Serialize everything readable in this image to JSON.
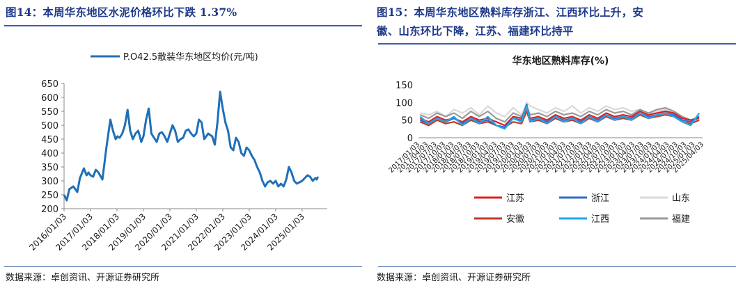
{
  "left": {
    "figure_title": "图14：本周华东地区水泥价格环比下跌 1.37%",
    "source": "数据来源：卓创资讯、开源证券研究所"
  },
  "right": {
    "figure_title_line1": "图15：本周华东地区熟料库存浙江、江西环比上升，安",
    "figure_title_line2": "徽、山东环比下降，江苏、福建环比持平",
    "source": "数据来源：卓创资讯、开源证券研究所"
  },
  "chart_data": [
    {
      "type": "line",
      "title": "",
      "xlabel": "",
      "ylabel": "",
      "ylim": [
        200,
        650
      ],
      "yticks": [
        200,
        250,
        300,
        350,
        400,
        450,
        500,
        550,
        600,
        650
      ],
      "xtick_labels": [
        "2016/01/03",
        "2017/01/03",
        "2018/01/03",
        "2019/01/03",
        "2020/01/03",
        "2021/01/03",
        "2022/01/03",
        "2023/01/03",
        "2024/01/03",
        "2025/01/03"
      ],
      "legend_position": "top",
      "grid": false,
      "colors": {
        "line": "#1f6fb8",
        "axis": "#888888"
      },
      "series": [
        {
          "name": "P.O42.5散装华东地区均价(元/吨)",
          "x": [
            2016.0,
            2016.1,
            2016.2,
            2016.35,
            2016.5,
            2016.6,
            2016.75,
            2016.85,
            2016.92,
            2017.0,
            2017.1,
            2017.2,
            2017.3,
            2017.45,
            2017.6,
            2017.75,
            2017.85,
            2017.95,
            2018.02,
            2018.1,
            2018.2,
            2018.3,
            2018.4,
            2018.5,
            2018.6,
            2018.7,
            2018.8,
            2018.85,
            2018.92,
            2019.0,
            2019.1,
            2019.2,
            2019.3,
            2019.4,
            2019.5,
            2019.6,
            2019.7,
            2019.8,
            2019.9,
            2020.0,
            2020.1,
            2020.2,
            2020.3,
            2020.4,
            2020.5,
            2020.6,
            2020.7,
            2020.8,
            2020.9,
            2021.0,
            2021.1,
            2021.2,
            2021.3,
            2021.45,
            2021.6,
            2021.7,
            2021.8,
            2021.9,
            2022.0,
            2022.1,
            2022.2,
            2022.3,
            2022.4,
            2022.5,
            2022.6,
            2022.7,
            2022.8,
            2022.9,
            2023.0,
            2023.1,
            2023.2,
            2023.3,
            2023.4,
            2023.5,
            2023.6,
            2023.7,
            2023.8,
            2023.9,
            2024.0,
            2024.1,
            2024.2,
            2024.3,
            2024.4,
            2024.5,
            2024.6,
            2024.7,
            2024.8,
            2024.9,
            2025.0,
            2025.1,
            2025.2,
            2025.3,
            2025.4,
            2025.5,
            2025.55,
            2025.6
          ],
          "values": [
            250,
            230,
            270,
            280,
            260,
            310,
            345,
            320,
            330,
            320,
            315,
            340,
            330,
            305,
            420,
            520,
            480,
            450,
            460,
            455,
            470,
            500,
            555,
            480,
            450,
            470,
            480,
            465,
            440,
            460,
            520,
            560,
            470,
            455,
            440,
            470,
            475,
            460,
            440,
            470,
            500,
            480,
            440,
            450,
            455,
            480,
            485,
            470,
            460,
            470,
            520,
            510,
            450,
            470,
            460,
            430,
            510,
            620,
            560,
            510,
            480,
            420,
            410,
            455,
            440,
            400,
            390,
            420,
            410,
            390,
            375,
            350,
            330,
            300,
            280,
            295,
            300,
            290,
            300,
            280,
            290,
            280,
            305,
            350,
            330,
            300,
            290,
            295,
            300,
            310,
            320,
            315,
            300,
            310,
            305,
            315
          ]
        }
      ]
    },
    {
      "type": "line",
      "title": "华东地区熟料库存(%)",
      "xlabel": "",
      "ylabel": "",
      "ylim": [
        0,
        150
      ],
      "yticks": [
        0,
        50,
        100,
        150
      ],
      "xtick_labels": [
        "2017/01/03",
        "2017/04/03",
        "2017/07/03",
        "2017/10/03",
        "2018/01/03",
        "2018/04/03",
        "2018/07/03",
        "2018/10/03",
        "2019/01/03",
        "2019/04/03",
        "2019/07/03",
        "2019/10/03",
        "2020/01/03",
        "2020/04/03",
        "2020/07/03",
        "2020/10/03",
        "2021/01/03",
        "2021/04/03",
        "2021/07/03",
        "2021/10/03",
        "2022/01/03",
        "2022/04/03",
        "2022/07/03",
        "2022/10/03",
        "2023/01/03",
        "2023/04/03",
        "2023/07/03",
        "2023/10/03",
        "2024/01/03",
        "2024/04/03",
        "2024/07/03",
        "2024/10/03",
        "2025/01/03",
        "2025/04/03"
      ],
      "legend_position": "bottom",
      "grid": false,
      "colors": {
        "江苏": "#e02020",
        "浙江": "#2f6cc9",
        "山东": "#d9d9d9",
        "安徽": "#c0392b",
        "江西": "#1fa8ea",
        "福建": "#9a9a9a"
      },
      "x": [
        2017.0,
        2017.25,
        2017.5,
        2017.75,
        2018.0,
        2018.25,
        2018.5,
        2018.75,
        2019.0,
        2019.25,
        2019.5,
        2019.75,
        2020.0,
        2020.15,
        2020.25,
        2020.5,
        2020.75,
        2021.0,
        2021.25,
        2021.5,
        2021.75,
        2022.0,
        2022.25,
        2022.5,
        2022.75,
        2023.0,
        2023.25,
        2023.5,
        2023.75,
        2024.0,
        2024.25,
        2024.5,
        2024.75,
        2025.0,
        2025.25
      ],
      "series": [
        {
          "name": "江苏",
          "values": [
            55,
            45,
            60,
            50,
            55,
            45,
            60,
            50,
            55,
            45,
            35,
            60,
            55,
            85,
            55,
            60,
            50,
            65,
            55,
            60,
            50,
            65,
            55,
            70,
            60,
            65,
            60,
            75,
            65,
            70,
            75,
            70,
            55,
            50,
            55
          ]
        },
        {
          "name": "浙江",
          "values": [
            50,
            40,
            55,
            45,
            55,
            40,
            55,
            45,
            50,
            35,
            30,
            55,
            50,
            95,
            50,
            55,
            45,
            60,
            50,
            55,
            45,
            60,
            50,
            65,
            55,
            60,
            55,
            70,
            60,
            65,
            70,
            65,
            50,
            45,
            60
          ]
        },
        {
          "name": "山东",
          "values": [
            70,
            65,
            75,
            60,
            80,
            70,
            85,
            65,
            90,
            70,
            60,
            85,
            65,
            100,
            90,
            80,
            70,
            85,
            75,
            90,
            70,
            85,
            75,
            90,
            80,
            85,
            75,
            80,
            70,
            75,
            80,
            70,
            60,
            45,
            50
          ]
        },
        {
          "name": "安徽",
          "values": [
            45,
            35,
            50,
            40,
            45,
            35,
            50,
            40,
            45,
            35,
            30,
            45,
            40,
            75,
            45,
            50,
            40,
            55,
            45,
            50,
            40,
            55,
            45,
            60,
            50,
            55,
            50,
            65,
            55,
            60,
            65,
            60,
            45,
            40,
            50
          ]
        },
        {
          "name": "江西",
          "values": [
            60,
            40,
            55,
            45,
            60,
            35,
            55,
            40,
            60,
            35,
            25,
            55,
            45,
            90,
            45,
            55,
            40,
            60,
            45,
            55,
            40,
            60,
            45,
            65,
            50,
            60,
            50,
            70,
            55,
            65,
            70,
            60,
            45,
            35,
            70
          ]
        },
        {
          "name": "福建",
          "values": [
            65,
            55,
            70,
            60,
            70,
            55,
            75,
            60,
            75,
            55,
            45,
            70,
            60,
            90,
            65,
            70,
            60,
            75,
            65,
            70,
            60,
            75,
            65,
            80,
            70,
            75,
            65,
            80,
            70,
            80,
            85,
            75,
            60,
            50,
            60
          ]
        }
      ]
    }
  ]
}
